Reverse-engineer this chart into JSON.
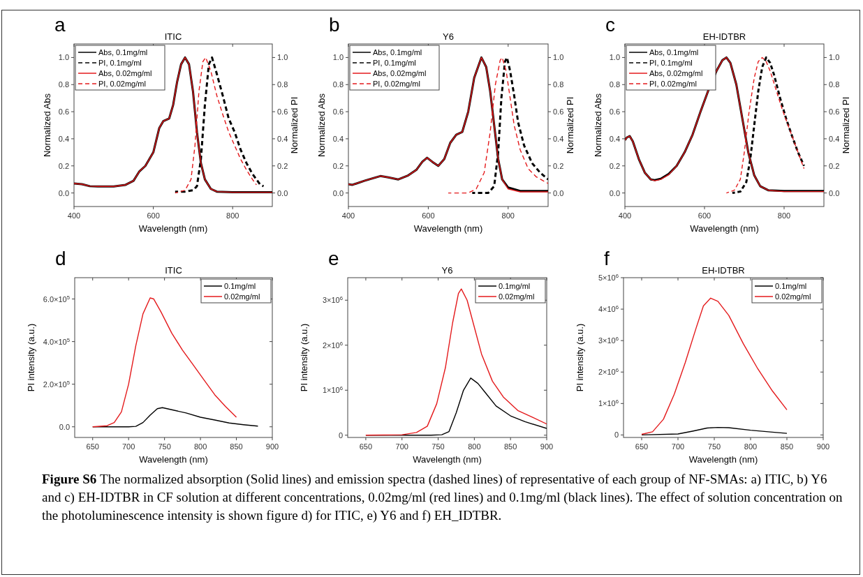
{
  "chart_data": [
    {
      "type": "line",
      "title": "ITIC",
      "xlabel": "Wavelength (nm)",
      "ylabel": "Normalized Abs",
      "y2label": "Normalized PI",
      "annotations": [
        "a"
      ],
      "legend": "top left",
      "xlim": [
        400,
        900
      ],
      "xticks": [
        400,
        600,
        800
      ],
      "ylim": [
        -0.1,
        1.1
      ],
      "yticks": [
        {
          "value": 0,
          "label": "0.0"
        },
        {
          "value": 0.2,
          "label": "0.2"
        },
        {
          "value": 0.4,
          "label": "0.4"
        },
        {
          "value": 0.6,
          "label": "0.6"
        },
        {
          "value": 0.8,
          "label": "0.8"
        },
        {
          "value": 1,
          "label": "1.0"
        }
      ],
      "y2lim": [
        -0.1,
        1.1
      ],
      "y2ticks": [
        {
          "value": 0,
          "label": "0.0"
        },
        {
          "value": 0.2,
          "label": "0.2"
        },
        {
          "value": 0.4,
          "label": "0.4"
        },
        {
          "value": 0.6,
          "label": "0.6"
        },
        {
          "value": 0.8,
          "label": "0.8"
        },
        {
          "value": 1,
          "label": "1.0"
        }
      ],
      "series": [
        {
          "name": "Abs, 0.1mg/ml",
          "color": "#000000",
          "line_style": "solid",
          "x": [
            400,
            420,
            440,
            460,
            500,
            530,
            550,
            565,
            580,
            600,
            615,
            625,
            640,
            650,
            660,
            670,
            680,
            690,
            700,
            710,
            720,
            730,
            745,
            760,
            800,
            900
          ],
          "values": [
            0.07,
            0.065,
            0.05,
            0.048,
            0.048,
            0.06,
            0.09,
            0.16,
            0.2,
            0.3,
            0.48,
            0.53,
            0.55,
            0.65,
            0.82,
            0.95,
            1.0,
            0.95,
            0.75,
            0.45,
            0.22,
            0.1,
            0.03,
            0.01,
            0.005,
            0.005
          ]
        },
        {
          "name": "PI, 0.1mg/ml",
          "color": "#000000",
          "line_style": "dashed",
          "x": [
            655,
            680,
            700,
            710,
            720,
            730,
            740,
            748,
            760,
            775,
            790,
            805,
            820,
            835,
            850,
            860,
            870,
            878
          ],
          "values": [
            0.01,
            0.01,
            0.02,
            0.05,
            0.25,
            0.65,
            0.95,
            1.0,
            0.88,
            0.72,
            0.55,
            0.45,
            0.32,
            0.22,
            0.14,
            0.1,
            0.06,
            0.05
          ]
        },
        {
          "name": "Abs, 0.02mg/ml",
          "color": "#e41a1c",
          "line_style": "solid",
          "x": [
            400,
            420,
            440,
            460,
            500,
            530,
            550,
            565,
            580,
            600,
            615,
            625,
            640,
            650,
            660,
            670,
            680,
            690,
            700,
            710,
            720,
            730,
            745,
            760,
            800,
            900
          ],
          "values": [
            0.07,
            0.065,
            0.05,
            0.048,
            0.048,
            0.06,
            0.09,
            0.16,
            0.2,
            0.3,
            0.48,
            0.53,
            0.55,
            0.65,
            0.82,
            0.95,
            1.0,
            0.95,
            0.75,
            0.45,
            0.22,
            0.1,
            0.03,
            0.01,
            0.005,
            0.005
          ]
        },
        {
          "name": "PI, 0.02mg/ml",
          "color": "#e41a1c",
          "line_style": "dashed",
          "x": [
            655,
            680,
            695,
            705,
            715,
            725,
            732,
            745,
            760,
            775,
            790,
            805,
            820,
            835,
            850,
            860
          ],
          "values": [
            0.0,
            0.02,
            0.1,
            0.35,
            0.75,
            0.97,
            1.0,
            0.9,
            0.72,
            0.58,
            0.45,
            0.35,
            0.25,
            0.17,
            0.1,
            0.06
          ]
        }
      ]
    },
    {
      "type": "line",
      "title": "Y6",
      "xlabel": "Wavelength (nm)",
      "ylabel": "Normalized Abs",
      "y2label": "Normalized PI",
      "annotations": [
        "b"
      ],
      "legend": "top left",
      "xlim": [
        400,
        900
      ],
      "xticks": [
        400,
        600,
        800
      ],
      "ylim": [
        -0.1,
        1.1
      ],
      "yticks": [
        {
          "value": 0,
          "label": "0.0"
        },
        {
          "value": 0.2,
          "label": "0.2"
        },
        {
          "value": 0.4,
          "label": "0.4"
        },
        {
          "value": 0.6,
          "label": "0.6"
        },
        {
          "value": 0.8,
          "label": "0.8"
        },
        {
          "value": 1,
          "label": "1.0"
        }
      ],
      "y2lim": [
        -0.1,
        1.1
      ],
      "y2ticks": [
        {
          "value": 0,
          "label": "0.0"
        },
        {
          "value": 0.2,
          "label": "0.2"
        },
        {
          "value": 0.4,
          "label": "0.4"
        },
        {
          "value": 0.6,
          "label": "0.6"
        },
        {
          "value": 0.8,
          "label": "0.8"
        },
        {
          "value": 1,
          "label": "1.0"
        }
      ],
      "series": [
        {
          "name": "Abs, 0.1mg/ml",
          "color": "#000000",
          "line_style": "solid",
          "x": [
            400,
            410,
            440,
            480,
            500,
            525,
            550,
            570,
            585,
            597,
            610,
            625,
            640,
            655,
            670,
            685,
            700,
            715,
            733,
            745,
            755,
            765,
            775,
            785,
            800,
            830,
            900
          ],
          "values": [
            0.065,
            0.06,
            0.09,
            0.125,
            0.115,
            0.1,
            0.13,
            0.17,
            0.23,
            0.26,
            0.23,
            0.2,
            0.25,
            0.37,
            0.43,
            0.45,
            0.6,
            0.85,
            1.0,
            0.93,
            0.75,
            0.5,
            0.25,
            0.1,
            0.04,
            0.015,
            0.015
          ]
        },
        {
          "name": "PI, 0.1mg/ml",
          "color": "#000000",
          "line_style": "dashed",
          "x": [
            710,
            750,
            765,
            775,
            783,
            792,
            797,
            805,
            815,
            825,
            840,
            860,
            880,
            900
          ],
          "values": [
            0.0,
            0.0,
            0.05,
            0.3,
            0.7,
            0.97,
            1.0,
            0.9,
            0.72,
            0.52,
            0.35,
            0.22,
            0.15,
            0.1
          ]
        },
        {
          "name": "Abs, 0.02mg/ml",
          "color": "#e41a1c",
          "line_style": "solid",
          "x": [
            400,
            410,
            440,
            480,
            500,
            525,
            550,
            570,
            585,
            597,
            610,
            625,
            640,
            655,
            670,
            685,
            700,
            715,
            733,
            745,
            755,
            765,
            775,
            785,
            800,
            830,
            900
          ],
          "values": [
            0.065,
            0.06,
            0.09,
            0.125,
            0.115,
            0.1,
            0.13,
            0.17,
            0.23,
            0.26,
            0.23,
            0.2,
            0.25,
            0.37,
            0.43,
            0.45,
            0.6,
            0.85,
            1.0,
            0.93,
            0.75,
            0.5,
            0.25,
            0.1,
            0.03,
            0.008,
            0.008
          ]
        },
        {
          "name": "PI, 0.02mg/ml",
          "color": "#e41a1c",
          "line_style": "dashed",
          "x": [
            650,
            700,
            720,
            740,
            755,
            768,
            780,
            785,
            795,
            805,
            815,
            830,
            850,
            870,
            900
          ],
          "values": [
            0,
            0,
            0.03,
            0.15,
            0.45,
            0.8,
            0.98,
            1.0,
            0.9,
            0.7,
            0.5,
            0.32,
            0.18,
            0.12,
            0.07
          ]
        }
      ]
    },
    {
      "type": "line",
      "title": "EH-IDTBR",
      "xlabel": "Wavelength (nm)",
      "ylabel": "Normalized Abs",
      "y2label": "Normalized PI",
      "annotations": [
        "c"
      ],
      "legend": "top left",
      "xlim": [
        400,
        900
      ],
      "xticks": [
        400,
        600,
        800
      ],
      "ylim": [
        -0.1,
        1.1
      ],
      "yticks": [
        {
          "value": 0,
          "label": "0.0"
        },
        {
          "value": 0.2,
          "label": "0.2"
        },
        {
          "value": 0.4,
          "label": "0.4"
        },
        {
          "value": 0.6,
          "label": "0.6"
        },
        {
          "value": 0.8,
          "label": "0.8"
        },
        {
          "value": 1,
          "label": "1.0"
        }
      ],
      "y2lim": [
        -0.1,
        1.1
      ],
      "y2ticks": [
        {
          "value": 0,
          "label": "0.0"
        },
        {
          "value": 0.2,
          "label": "0.2"
        },
        {
          "value": 0.4,
          "label": "0.4"
        },
        {
          "value": 0.6,
          "label": "0.6"
        },
        {
          "value": 0.8,
          "label": "0.8"
        },
        {
          "value": 1,
          "label": "1.0"
        }
      ],
      "series": [
        {
          "name": "Abs, 0.1mg/ml",
          "color": "#000000",
          "line_style": "solid",
          "x": [
            400,
            405,
            412,
            420,
            435,
            450,
            465,
            475,
            490,
            510,
            530,
            550,
            570,
            590,
            610,
            630,
            645,
            655,
            665,
            680,
            695,
            710,
            725,
            740,
            760,
            800,
            900
          ],
          "values": [
            0.39,
            0.41,
            0.42,
            0.38,
            0.25,
            0.15,
            0.1,
            0.095,
            0.105,
            0.14,
            0.2,
            0.3,
            0.43,
            0.6,
            0.76,
            0.9,
            0.98,
            1.0,
            0.96,
            0.8,
            0.55,
            0.3,
            0.13,
            0.05,
            0.02,
            0.015,
            0.015
          ]
        },
        {
          "name": "PI, 0.1mg/ml",
          "color": "#000000",
          "line_style": "dashed",
          "x": [
            670,
            690,
            705,
            715,
            725,
            735,
            745,
            755,
            765,
            775,
            790,
            805,
            820,
            835,
            850
          ],
          "values": [
            0.0,
            0.01,
            0.08,
            0.25,
            0.5,
            0.75,
            0.93,
            1.0,
            0.96,
            0.87,
            0.7,
            0.55,
            0.42,
            0.3,
            0.2
          ]
        },
        {
          "name": "Abs, 0.02mg/ml",
          "color": "#e41a1c",
          "line_style": "solid",
          "x": [
            400,
            405,
            412,
            420,
            435,
            450,
            465,
            475,
            490,
            510,
            530,
            550,
            570,
            590,
            610,
            630,
            645,
            655,
            665,
            680,
            695,
            710,
            725,
            740,
            760,
            800,
            900
          ],
          "values": [
            0.39,
            0.41,
            0.42,
            0.38,
            0.25,
            0.15,
            0.1,
            0.09,
            0.1,
            0.135,
            0.2,
            0.3,
            0.43,
            0.6,
            0.76,
            0.9,
            0.98,
            1.0,
            0.96,
            0.8,
            0.55,
            0.3,
            0.13,
            0.05,
            0.02,
            0.01,
            0.01
          ]
        },
        {
          "name": "PI, 0.02mg/ml",
          "color": "#e41a1c",
          "line_style": "dashed",
          "x": [
            655,
            675,
            690,
            700,
            712,
            725,
            735,
            745,
            755,
            765,
            780,
            795,
            810,
            825,
            840,
            850
          ],
          "values": [
            0.0,
            0.02,
            0.1,
            0.3,
            0.6,
            0.85,
            0.97,
            1.0,
            0.97,
            0.9,
            0.76,
            0.62,
            0.5,
            0.38,
            0.26,
            0.18
          ]
        }
      ]
    },
    {
      "type": "line",
      "title": "ITIC",
      "xlabel": "Wavelength (nm)",
      "ylabel": "PI intensity (a.u.)",
      "annotations": [
        "d"
      ],
      "legend": "top right",
      "xlim": [
        625,
        900
      ],
      "xticks": [
        650,
        700,
        750,
        800,
        850,
        900
      ],
      "ylim": [
        -50000,
        700000
      ],
      "yticks": [
        {
          "value": 0,
          "label": "0.0"
        },
        {
          "value": 200000,
          "label": "2.0×10$^{5}$"
        },
        {
          "value": 400000,
          "label": "4.0×10$^{5}$"
        },
        {
          "value": 600000,
          "label": "6.0×10$^{5}$"
        }
      ],
      "series": [
        {
          "name": "0.1mg/ml",
          "color": "#000000",
          "line_style": "solid",
          "x": [
            650,
            700,
            710,
            720,
            730,
            740,
            747,
            760,
            780,
            800,
            820,
            840,
            860,
            880
          ],
          "values": [
            0,
            0,
            2000,
            20000,
            55000,
            85000,
            90000,
            80000,
            65000,
            45000,
            32000,
            18000,
            10000,
            3000
          ]
        },
        {
          "name": "0.02mg/ml",
          "color": "#e41a1c",
          "line_style": "solid",
          "x": [
            650,
            670,
            680,
            690,
            700,
            710,
            720,
            730,
            735,
            745,
            760,
            775,
            790,
            805,
            820,
            835,
            850
          ],
          "values": [
            0,
            5000,
            20000,
            70000,
            200000,
            380000,
            530000,
            605000,
            600000,
            540000,
            440000,
            360000,
            290000,
            220000,
            150000,
            95000,
            45000
          ]
        }
      ]
    },
    {
      "type": "line",
      "title": "Y6",
      "xlabel": "Wavelength (nm)",
      "ylabel": "PI intensity (a.u.)",
      "annotations": [
        "e"
      ],
      "legend": "top right",
      "xlim": [
        625,
        900
      ],
      "xticks": [
        650,
        700,
        750,
        800,
        850,
        900
      ],
      "ylim": [
        -50000,
        3500000
      ],
      "yticks": [
        {
          "value": 0,
          "label": "0"
        },
        {
          "value": 1000000,
          "label": "1×10$^{6}$"
        },
        {
          "value": 2000000,
          "label": "2×10$^{6}$"
        },
        {
          "value": 3000000,
          "label": "3×10$^{6}$"
        }
      ],
      "series": [
        {
          "name": "0.1mg/ml",
          "color": "#000000",
          "line_style": "solid",
          "x": [
            650,
            740,
            755,
            765,
            775,
            785,
            795,
            805,
            815,
            830,
            850,
            870,
            900
          ],
          "values": [
            0,
            0,
            10000,
            80000,
            500000,
            1000000,
            1270000,
            1150000,
            950000,
            650000,
            430000,
            300000,
            150000
          ]
        },
        {
          "name": "0.02mg/ml",
          "color": "#e41a1c",
          "line_style": "solid",
          "x": [
            650,
            700,
            720,
            735,
            748,
            760,
            770,
            778,
            782,
            790,
            800,
            810,
            825,
            840,
            860,
            880,
            900
          ],
          "values": [
            0,
            10000,
            60000,
            200000,
            700000,
            1500000,
            2500000,
            3150000,
            3250000,
            3000000,
            2400000,
            1800000,
            1200000,
            850000,
            550000,
            400000,
            250000
          ]
        }
      ]
    },
    {
      "type": "line",
      "title": "EH-IDTBR",
      "xlabel": "Wavelength (nm)",
      "ylabel": "PI intensity (a.u.)",
      "annotations": [
        "f",
        "Figure S6",
        "The normalized absorption (Solid lines) and emission spectra (dashed lines) of representative of each group of NF-SMAs: a) ITIC, b) Y6 and c) EH-IDTBR in CF solution at different concentrations, 0.02mg/ml (red lines) and 0.1mg/ml (black lines). The effect of solution concentration on the photoluminescence intensity is shown figure d) for ITIC, e) Y6 and f) EH_IDTBR."
      ],
      "legend": "top right",
      "xlim": [
        625,
        900
      ],
      "xticks": [
        650,
        700,
        750,
        800,
        850,
        900
      ],
      "ylim": [
        -80000,
        5000000
      ],
      "yticks": [
        {
          "value": 0,
          "label": "0"
        },
        {
          "value": 1000000,
          "label": "1×10$^{6}$"
        },
        {
          "value": 2000000,
          "label": "2×10$^{6}$"
        },
        {
          "value": 3000000,
          "label": "3×10$^{6}$"
        },
        {
          "value": 4000000,
          "label": "4×10$^{6}$"
        },
        {
          "value": 5000000,
          "label": "5×10$^{6}$"
        }
      ],
      "series": [
        {
          "name": "0.1mg/ml",
          "color": "#000000",
          "line_style": "solid",
          "x": [
            650,
            700,
            720,
            740,
            755,
            770,
            800,
            830,
            850
          ],
          "values": [
            0,
            30000,
            120000,
            220000,
            240000,
            230000,
            150000,
            90000,
            50000
          ]
        },
        {
          "name": "0.02mg/ml",
          "color": "#e41a1c",
          "line_style": "solid",
          "x": [
            650,
            665,
            680,
            695,
            710,
            725,
            735,
            745,
            755,
            770,
            790,
            810,
            830,
            850
          ],
          "values": [
            20000,
            100000,
            500000,
            1300000,
            2300000,
            3400000,
            4100000,
            4350000,
            4250000,
            3800000,
            2900000,
            2100000,
            1400000,
            800000
          ]
        }
      ]
    }
  ]
}
